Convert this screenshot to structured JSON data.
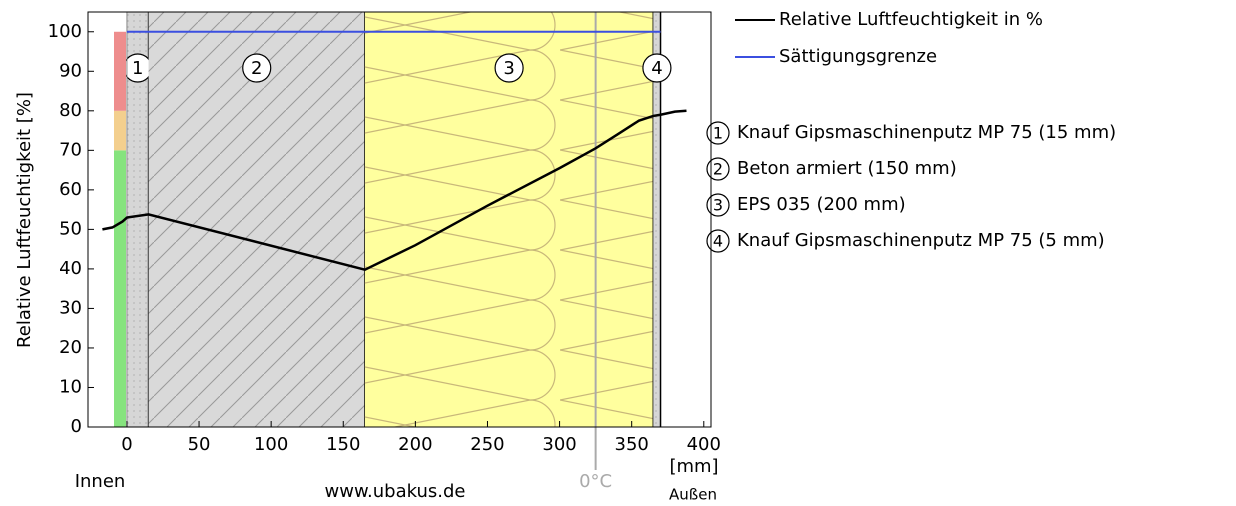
{
  "chart_data": {
    "type": "line",
    "ylabel": "Relative Luftfeuchtigkeit [%]",
    "xlim": [
      -27,
      405
    ],
    "ylim": [
      0,
      105
    ],
    "xticks": [
      0,
      50,
      100,
      150,
      200,
      250,
      300,
      350,
      400
    ],
    "yticks": [
      0,
      10,
      20,
      30,
      40,
      50,
      60,
      70,
      80,
      90,
      100
    ],
    "series": [
      {
        "name": "Relative Luftfeuchtigkeit in %",
        "color": "#000000",
        "x": [
          -17,
          -10,
          -3,
          0,
          15,
          165,
          200,
          250,
          300,
          325,
          340,
          355,
          365,
          370,
          380,
          388
        ],
        "values": [
          50,
          50.5,
          52,
          53,
          53.8,
          39.8,
          46,
          56,
          65.5,
          70.5,
          74,
          77.5,
          78.7,
          79,
          79.8,
          80
        ]
      },
      {
        "name": "Sättigungsgrenze",
        "color": "#3b4fe0",
        "x": [
          0,
          370
        ],
        "values": [
          100,
          100
        ]
      }
    ],
    "layers": [
      {
        "number": "1",
        "name": "Knauf Gipsmaschinenputz MP 75 (15 mm)",
        "from": 0,
        "to": 15,
        "fill": "#d6d6d6",
        "pattern": "dots"
      },
      {
        "number": "2",
        "name": "Beton armiert (150 mm)",
        "from": 15,
        "to": 165,
        "fill": "#d9d9d9",
        "pattern": "hatch"
      },
      {
        "number": "3",
        "name": "EPS 035 (200 mm)",
        "from": 165,
        "to": 365,
        "fill": "#ffff9e",
        "pattern": "loops"
      },
      {
        "number": "4",
        "name": "Knauf Gipsmaschinenputz MP 75 (5 mm)",
        "from": 365,
        "to": 370,
        "fill": "#d6d6d6",
        "pattern": "dots"
      }
    ],
    "comfort_zones": [
      {
        "from": 0,
        "to": 70,
        "color": "#86e37e"
      },
      {
        "from": 70,
        "to": 80,
        "color": "#f3cf8e"
      },
      {
        "from": 80,
        "to": 100,
        "color": "#ee8d8d"
      }
    ],
    "zero_celsius": {
      "x": 325,
      "label": "0°C"
    },
    "inside_label": "Innen",
    "outside_label": "Außen",
    "unit_label": "[mm]",
    "watermark": "www.ubakus.de"
  }
}
